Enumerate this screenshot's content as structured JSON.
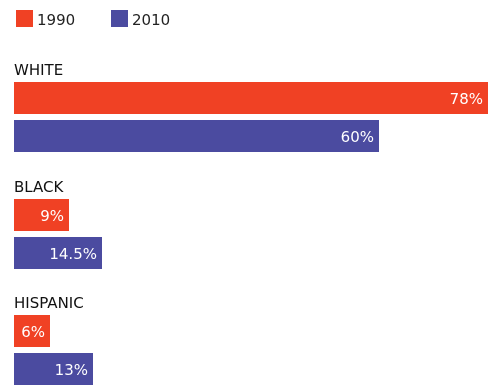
{
  "chart_data": {
    "type": "bar",
    "orientation": "horizontal",
    "categories": [
      "WHITE",
      "BLACK",
      "HISPANIC"
    ],
    "series": [
      {
        "name": "1990",
        "color": "#f04124",
        "values": [
          78,
          9,
          6
        ],
        "labels": [
          "78%",
          "9%",
          "6%"
        ]
      },
      {
        "name": "2010",
        "color": "#4b4ba0",
        "values": [
          60,
          14.5,
          13
        ],
        "labels": [
          "60%",
          "14.5%",
          "13%"
        ]
      }
    ],
    "xlim": [
      0,
      78
    ],
    "legend": "top-left",
    "grid": false,
    "title": "",
    "xlabel": "",
    "ylabel": ""
  }
}
